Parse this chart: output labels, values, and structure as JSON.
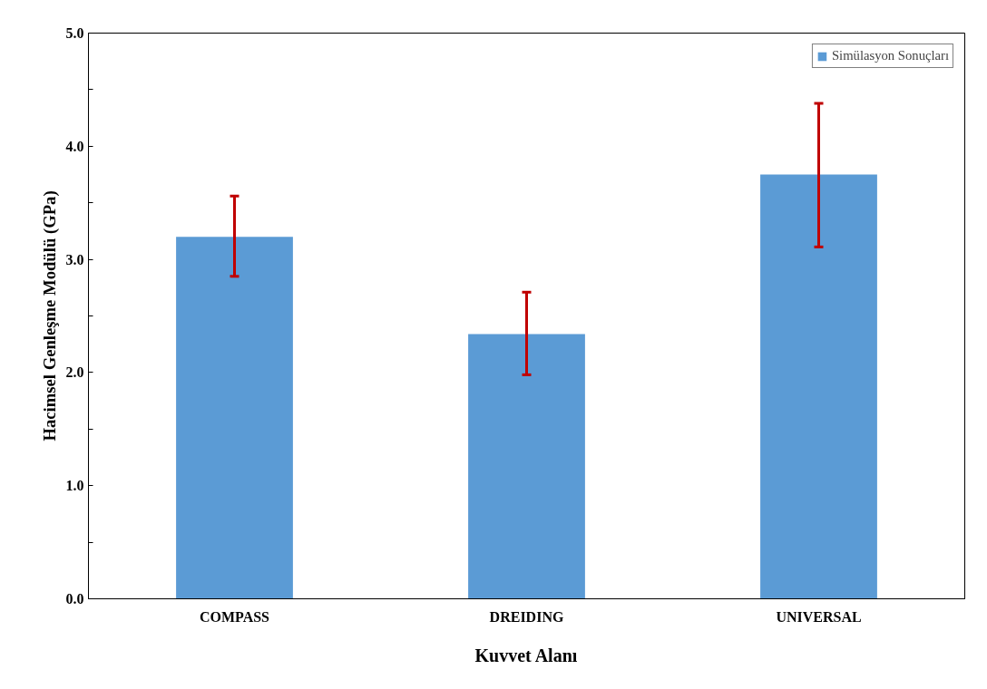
{
  "chart_data": {
    "type": "bar",
    "xlabel": "Kuvvet Alanı",
    "ylabel": "Hacimsel Genleşme Modülü (GPa)",
    "categories": [
      "COMPASS",
      "DREIDING",
      "UNIVERSAL"
    ],
    "series": [
      {
        "name": "Simülasyon Sonuçları",
        "color": "#5b9bd5",
        "values": [
          3.2,
          2.34,
          3.75
        ],
        "errors": [
          [
            2.85,
            3.56
          ],
          [
            1.98,
            2.71
          ],
          [
            3.11,
            4.38
          ]
        ]
      }
    ],
    "ylim": [
      0,
      5
    ],
    "yticks": [
      {
        "value": 0,
        "label": "0.0"
      },
      {
        "value": 0.5,
        "label": null
      },
      {
        "value": 1,
        "label": "1.0"
      },
      {
        "value": 1.5,
        "label": null
      },
      {
        "value": 2,
        "label": "2.0"
      },
      {
        "value": 2.5,
        "label": null
      },
      {
        "value": 3,
        "label": "3.0"
      },
      {
        "value": 3.5,
        "label": null
      },
      {
        "value": 4,
        "label": "4.0"
      },
      {
        "value": 4.5,
        "label": null
      },
      {
        "value": 5,
        "label": "5.0"
      }
    ],
    "grid": false,
    "legend": "top right"
  }
}
